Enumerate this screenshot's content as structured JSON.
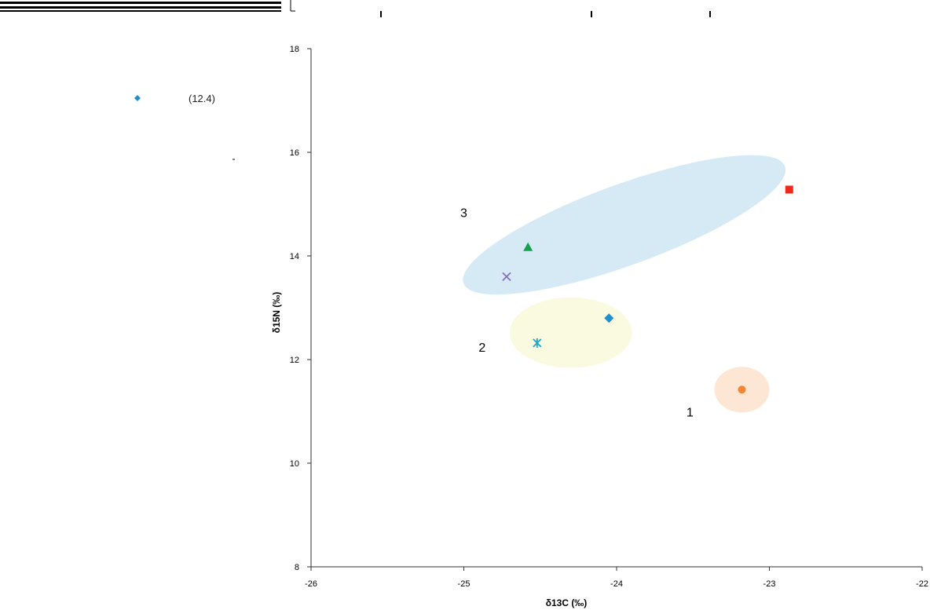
{
  "chart_data": {
    "type": "scatter",
    "xlabel": "δ13C (‰)",
    "ylabel": "δ15N (‰)",
    "xlim": [
      -26,
      -22
    ],
    "ylim": [
      8,
      18
    ],
    "xticks": [
      -26,
      -25,
      -24,
      -23,
      -22
    ],
    "yticks": [
      8,
      10,
      12,
      14,
      16,
      18
    ],
    "xtick_labels": [
      "-26",
      "-25",
      "-24",
      "-23",
      "-22"
    ],
    "ytick_labels": [
      "8",
      "10",
      "12",
      "14",
      "16",
      "18"
    ],
    "grid": false,
    "legend_position": "left",
    "legend_partial_text": "(12.4)",
    "series": [
      {
        "marker": "diamond",
        "color": "#1f8fcf",
        "x": -24.05,
        "y": 12.8
      },
      {
        "marker": "square",
        "color": "#ee2a1a",
        "x": -22.87,
        "y": 15.28
      },
      {
        "marker": "triangle",
        "color": "#13a04b",
        "x": -24.58,
        "y": 14.17
      },
      {
        "marker": "x",
        "color": "#8a6ebe",
        "x": -24.72,
        "y": 13.6
      },
      {
        "marker": "asterisk",
        "color": "#1fa8c8",
        "x": -24.52,
        "y": 12.32
      },
      {
        "marker": "circle",
        "color": "#f0883a",
        "x": -23.18,
        "y": 11.42
      }
    ],
    "clusters": [
      {
        "label": "1",
        "color": "#fde6d3",
        "cx": -23.18,
        "cy": 11.42,
        "rx": 0.18,
        "ry": 0.44,
        "angle": 0,
        "label_x": -23.52,
        "label_y": 10.9
      },
      {
        "label": "2",
        "color": "#fafae0",
        "cx": -24.3,
        "cy": 12.52,
        "rx": 0.4,
        "ry": 0.68,
        "angle": 0,
        "label_x": -24.88,
        "label_y": 12.15
      },
      {
        "label": "3",
        "color": "#d6eaf6",
        "cx": -23.95,
        "cy": 14.6,
        "rx": 1.12,
        "ry": 0.78,
        "angle": -20,
        "label_x": -25.0,
        "label_y": 14.75
      }
    ]
  }
}
